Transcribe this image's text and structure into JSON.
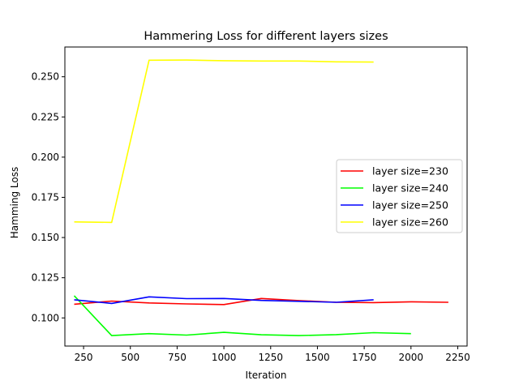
{
  "chart_data": {
    "type": "line",
    "title": "Hammering Loss for different layers sizes",
    "xlabel": "Iteration",
    "ylabel": "Hamming Loss",
    "xlim": [
      150,
      2300
    ],
    "ylim": [
      0.0825,
      0.2685
    ],
    "xticks": [
      250,
      500,
      750,
      1000,
      1250,
      1500,
      1750,
      2000,
      2250
    ],
    "yticks": [
      0.1,
      0.125,
      0.15,
      0.175,
      0.2,
      0.225,
      0.25
    ],
    "ytick_labels": [
      "0.100",
      "0.125",
      "0.150",
      "0.175",
      "0.200",
      "0.225",
      "0.250"
    ],
    "grid": false,
    "legend_position": "center-right",
    "series": [
      {
        "name": "layer size=230",
        "color": "#ff0000",
        "x": [
          200,
          400,
          600,
          800,
          1000,
          1200,
          1400,
          1600,
          1800,
          2000,
          2200
        ],
        "y": [
          0.1085,
          0.1105,
          0.1093,
          0.1087,
          0.1083,
          0.1121,
          0.1108,
          0.1097,
          0.1095,
          0.11,
          0.1097
        ]
      },
      {
        "name": "layer size=240",
        "color": "#00ff00",
        "x": [
          200,
          400,
          600,
          800,
          1000,
          1200,
          1400,
          1600,
          1800,
          2000
        ],
        "y": [
          0.1138,
          0.089,
          0.0902,
          0.0893,
          0.091,
          0.0895,
          0.089,
          0.0896,
          0.0908,
          0.0902
        ]
      },
      {
        "name": "layer size=250",
        "color": "#0000ff",
        "x": [
          200,
          400,
          600,
          800,
          1000,
          1200,
          1400,
          1600,
          1800
        ],
        "y": [
          0.1113,
          0.109,
          0.1131,
          0.112,
          0.1121,
          0.1109,
          0.1103,
          0.1097,
          0.1113
        ]
      },
      {
        "name": "layer size=260",
        "color": "#ffff00",
        "x": [
          200,
          400,
          600,
          800,
          1000,
          1200,
          1400,
          1600,
          1800
        ],
        "y": [
          0.1597,
          0.1594,
          0.2603,
          0.2604,
          0.26,
          0.2598,
          0.2598,
          0.2593,
          0.2591
        ]
      }
    ]
  }
}
